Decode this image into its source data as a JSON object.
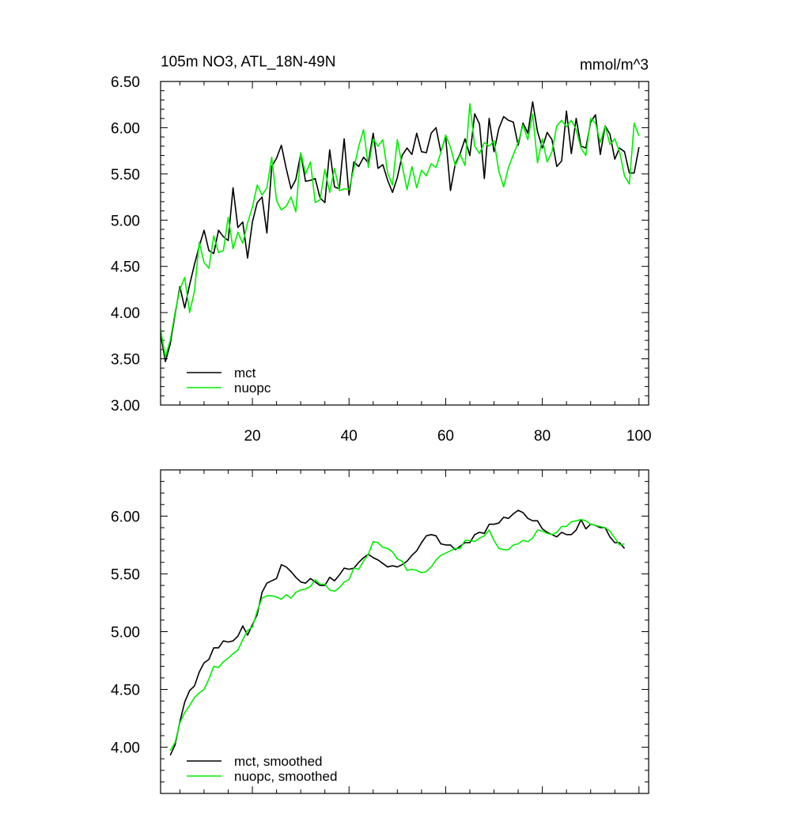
{
  "chart_data": [
    {
      "type": "line",
      "title": "105m NO3, ATL_18N-49N",
      "units": "mmol/m^3",
      "xlabel": "",
      "ylabel": "",
      "xlim": [
        1,
        102
      ],
      "ylim": [
        3.0,
        6.5
      ],
      "x_ticks": [
        20,
        40,
        60,
        80,
        100
      ],
      "y_ticks": [
        3.0,
        3.5,
        4.0,
        4.5,
        5.0,
        5.5,
        6.0,
        6.5
      ],
      "y_tick_labels": [
        "3.00",
        "3.50",
        "4.00",
        "4.50",
        "5.00",
        "5.50",
        "6.00",
        "6.50"
      ],
      "legend_position": "bottom-left",
      "series": [
        {
          "name": "mct",
          "color": "#000000",
          "x_start": 1,
          "values": [
            3.77,
            3.47,
            3.66,
            3.98,
            4.28,
            4.05,
            4.3,
            4.52,
            4.72,
            4.89,
            4.67,
            4.64,
            4.89,
            4.82,
            4.78,
            5.35,
            4.92,
            4.98,
            4.59,
            4.98,
            5.19,
            5.25,
            4.86,
            5.58,
            5.67,
            5.81,
            5.56,
            5.34,
            5.44,
            5.72,
            5.42,
            5.43,
            5.45,
            5.24,
            5.19,
            5.76,
            5.36,
            5.34,
            5.88,
            5.27,
            5.63,
            5.58,
            5.68,
            5.62,
            5.94,
            5.56,
            5.6,
            5.43,
            5.3,
            5.46,
            5.7,
            5.78,
            5.71,
            5.94,
            5.74,
            5.73,
            5.94,
            6.0,
            5.74,
            5.9,
            5.32,
            5.61,
            5.72,
            5.88,
            5.7,
            6.15,
            6.04,
            5.45,
            6.1,
            5.74,
            5.99,
            6.12,
            6.08,
            6.06,
            5.81,
            6.05,
            5.94,
            6.28,
            5.96,
            5.78,
            5.95,
            5.87,
            5.58,
            5.64,
            6.18,
            5.72,
            6.1,
            5.8,
            5.78,
            6.06,
            6.14,
            5.71,
            6.02,
            5.93,
            5.66,
            5.78,
            5.74,
            5.51,
            5.51,
            5.79
          ]
        },
        {
          "name": "nuopc",
          "color": "#00ee00",
          "x_start": 1,
          "values": [
            3.82,
            3.52,
            3.7,
            4.0,
            4.25,
            4.38,
            4.0,
            4.23,
            4.76,
            4.54,
            4.48,
            4.83,
            4.65,
            4.67,
            5.03,
            4.69,
            4.87,
            4.75,
            4.97,
            5.14,
            5.38,
            5.27,
            5.35,
            5.68,
            5.21,
            5.11,
            5.15,
            5.25,
            5.09,
            5.73,
            5.5,
            5.63,
            5.19,
            5.22,
            5.55,
            5.3,
            5.56,
            5.32,
            5.34,
            5.33,
            5.56,
            5.8,
            5.98,
            5.57,
            5.88,
            5.8,
            5.87,
            5.51,
            5.38,
            5.87,
            5.59,
            5.33,
            5.58,
            5.35,
            5.54,
            5.48,
            5.61,
            5.57,
            5.73,
            5.92,
            5.79,
            5.59,
            5.71,
            5.59,
            6.26,
            5.8,
            5.72,
            5.84,
            5.8,
            5.86,
            5.53,
            5.36,
            5.57,
            5.71,
            5.84,
            6.03,
            5.87,
            6.15,
            5.62,
            5.88,
            5.63,
            5.74,
            6.02,
            6.08,
            6.01,
            6.08,
            5.98,
            5.78,
            5.7,
            6.1,
            6.05,
            5.84,
            6.02,
            5.82,
            5.88,
            5.74,
            5.48,
            5.39,
            6.05,
            5.91
          ]
        }
      ]
    },
    {
      "type": "line",
      "title": "",
      "xlabel": "",
      "ylabel": "",
      "xlim": [
        1,
        102
      ],
      "ylim": [
        3.6,
        6.4
      ],
      "x_ticks": [
        20,
        40,
        60,
        80,
        100
      ],
      "y_ticks": [
        4.0,
        4.5,
        5.0,
        5.5,
        6.0
      ],
      "y_tick_labels": [
        "4.00",
        "4.50",
        "5.00",
        "5.50",
        "6.00"
      ],
      "legend_position": "bottom-left",
      "series": [
        {
          "name": "mct, smoothed",
          "color": "#000000",
          "x_start": 3,
          "values": [
            3.93,
            4.02,
            4.22,
            4.39,
            4.49,
            4.53,
            4.65,
            4.73,
            4.76,
            4.86,
            4.86,
            4.92,
            4.91,
            4.92,
            4.96,
            5.05,
            4.97,
            5.06,
            5.15,
            5.34,
            5.42,
            5.44,
            5.46,
            5.58,
            5.56,
            5.52,
            5.47,
            5.43,
            5.42,
            5.46,
            5.43,
            5.4,
            5.4,
            5.47,
            5.44,
            5.49,
            5.55,
            5.54,
            5.55,
            5.6,
            5.64,
            5.67,
            5.64,
            5.62,
            5.59,
            5.56,
            5.57,
            5.56,
            5.58,
            5.61,
            5.66,
            5.7,
            5.77,
            5.83,
            5.84,
            5.83,
            5.76,
            5.75,
            5.75,
            5.71,
            5.74,
            5.77,
            5.77,
            5.84,
            5.86,
            5.85,
            5.93,
            5.93,
            5.94,
            5.99,
            5.98,
            6.02,
            6.05,
            6.03,
            5.98,
            5.96,
            5.96,
            5.89,
            5.86,
            5.84,
            5.82,
            5.86,
            5.84,
            5.84,
            5.88,
            5.97,
            5.89,
            5.93,
            5.92,
            5.9,
            5.9,
            5.82,
            5.77,
            5.77,
            5.72
          ]
        },
        {
          "name": "nuopc, smoothed",
          "color": "#00ee00",
          "x_start": 3,
          "values": [
            3.97,
            4.04,
            4.21,
            4.3,
            4.36,
            4.43,
            4.47,
            4.5,
            4.59,
            4.7,
            4.69,
            4.74,
            4.77,
            4.81,
            4.84,
            4.93,
            5.01,
            5.04,
            5.18,
            5.29,
            5.31,
            5.31,
            5.3,
            5.28,
            5.32,
            5.29,
            5.34,
            5.36,
            5.37,
            5.39,
            5.45,
            5.41,
            5.41,
            5.36,
            5.35,
            5.38,
            5.43,
            5.45,
            5.55,
            5.54,
            5.61,
            5.67,
            5.78,
            5.77,
            5.73,
            5.72,
            5.69,
            5.63,
            5.61,
            5.53,
            5.54,
            5.53,
            5.51,
            5.52,
            5.56,
            5.62,
            5.66,
            5.68,
            5.7,
            5.72,
            5.72,
            5.79,
            5.79,
            5.78,
            5.81,
            5.83,
            5.88,
            5.79,
            5.72,
            5.71,
            5.71,
            5.75,
            5.76,
            5.79,
            5.78,
            5.81,
            5.88,
            5.87,
            5.85,
            5.84,
            5.86,
            5.91,
            5.91,
            5.95,
            5.96,
            5.97,
            5.96,
            5.93,
            5.92,
            5.91,
            5.9,
            5.87,
            5.81,
            5.75,
            5.76
          ]
        }
      ]
    }
  ]
}
